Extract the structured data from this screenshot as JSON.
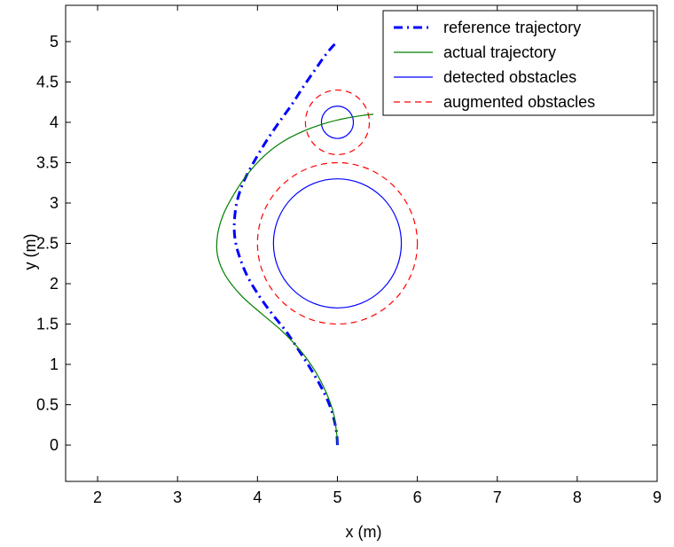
{
  "chart_data": {
    "type": "line",
    "xlabel": "x (m)",
    "ylabel": "y (m)",
    "xlim": [
      1.6,
      9
    ],
    "ylim": [
      -0.45,
      5.45
    ],
    "xticks": [
      2,
      3,
      4,
      5,
      6,
      7,
      8,
      9
    ],
    "yticks": [
      0,
      0.5,
      1,
      1.5,
      2,
      2.5,
      3,
      3.5,
      4,
      4.5,
      5
    ],
    "ytick_labels": [
      "0",
      "0.5",
      "1",
      "1.5",
      "2",
      "2.5",
      "3",
      "3.5",
      "4",
      "4.5",
      "5"
    ],
    "grid": false,
    "legend_position": "top-right",
    "series": [
      {
        "name": "reference trajectory",
        "style": "dashdot",
        "color": "#0000ff",
        "x": [
          5.0,
          4.99,
          4.95,
          4.88,
          4.78,
          4.65,
          4.5,
          4.35,
          4.18,
          4.02,
          3.87,
          3.77,
          3.72,
          3.71,
          3.74,
          3.82,
          3.95,
          4.1,
          4.27,
          4.43,
          4.58,
          4.72,
          4.84,
          4.93,
          5.0
        ],
        "y": [
          0.0,
          0.15,
          0.35,
          0.55,
          0.75,
          0.97,
          1.2,
          1.42,
          1.63,
          1.85,
          2.1,
          2.35,
          2.55,
          2.75,
          3.0,
          3.25,
          3.5,
          3.75,
          4.0,
          4.22,
          4.45,
          4.65,
          4.82,
          4.93,
          5.0
        ]
      },
      {
        "name": "actual trajectory",
        "style": "solid",
        "color": "#007f00",
        "x": [
          5.0,
          4.99,
          4.95,
          4.86,
          4.72,
          4.53,
          4.3,
          4.05,
          3.8,
          3.6,
          3.5,
          3.5,
          3.57,
          3.7,
          3.87,
          4.08,
          4.3,
          4.55,
          4.82,
          5.1,
          5.35,
          5.45
        ],
        "y": [
          0.0,
          0.15,
          0.4,
          0.65,
          0.92,
          1.18,
          1.42,
          1.63,
          1.85,
          2.1,
          2.35,
          2.6,
          2.85,
          3.1,
          3.35,
          3.58,
          3.75,
          3.88,
          3.98,
          4.05,
          4.09,
          4.1
        ]
      }
    ],
    "circles": [
      {
        "name": "detected obstacles",
        "style": "solid",
        "color": "#0000ff",
        "cx": 5.0,
        "cy": 2.5,
        "r": 0.8
      },
      {
        "name": "detected obstacles",
        "style": "solid",
        "color": "#0000ff",
        "cx": 5.0,
        "cy": 4.0,
        "r": 0.2
      },
      {
        "name": "augmented obstacles",
        "style": "dashed",
        "color": "#ff0000",
        "cx": 5.0,
        "cy": 2.5,
        "r": 1.0
      },
      {
        "name": "augmented obstacles",
        "style": "dashed",
        "color": "#ff0000",
        "cx": 5.0,
        "cy": 4.0,
        "r": 0.4
      }
    ],
    "legend": [
      {
        "label": "reference trajectory",
        "style": "dashdot",
        "color": "#0000ff"
      },
      {
        "label": "actual trajectory",
        "style": "solid",
        "color": "#007f00"
      },
      {
        "label": "detected obstacles",
        "style": "solid",
        "color": "#0000ff"
      },
      {
        "label": "augmented obstacles",
        "style": "dashed",
        "color": "#ff0000"
      }
    ]
  }
}
